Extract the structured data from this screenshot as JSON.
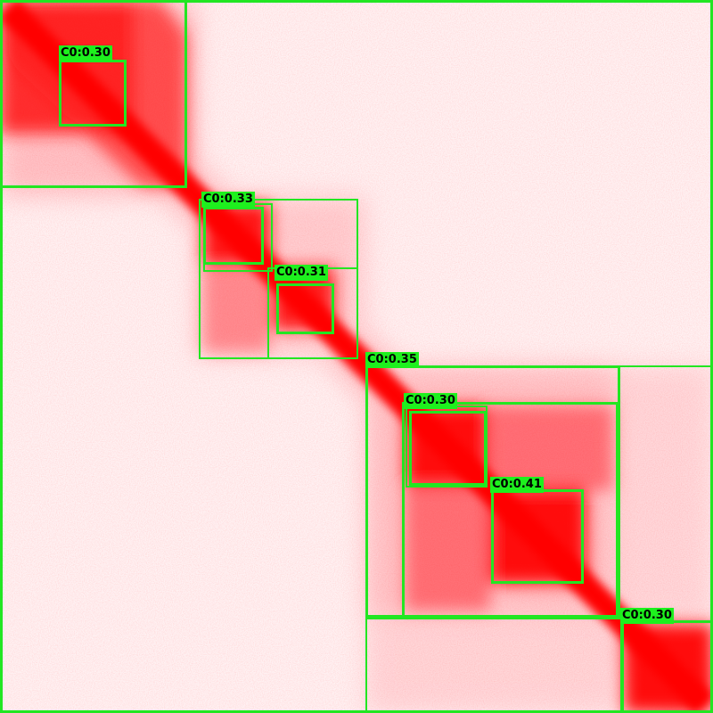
{
  "image": {
    "description_colors": {
      "background": "#fff3f4",
      "signal": "#ff0000",
      "box_outline": "#22e622",
      "label_bg": "#1ef01e",
      "label_text": "#000000"
    }
  },
  "detections": [
    {
      "label": "C0:0.30"
    },
    {
      "label": "C0:0.33"
    },
    {
      "label": "C0:0.31"
    },
    {
      "label": "C0:0.35"
    },
    {
      "label": "C0:0.30"
    },
    {
      "label": "C0:0.41"
    },
    {
      "label": "C0:0.30"
    }
  ]
}
